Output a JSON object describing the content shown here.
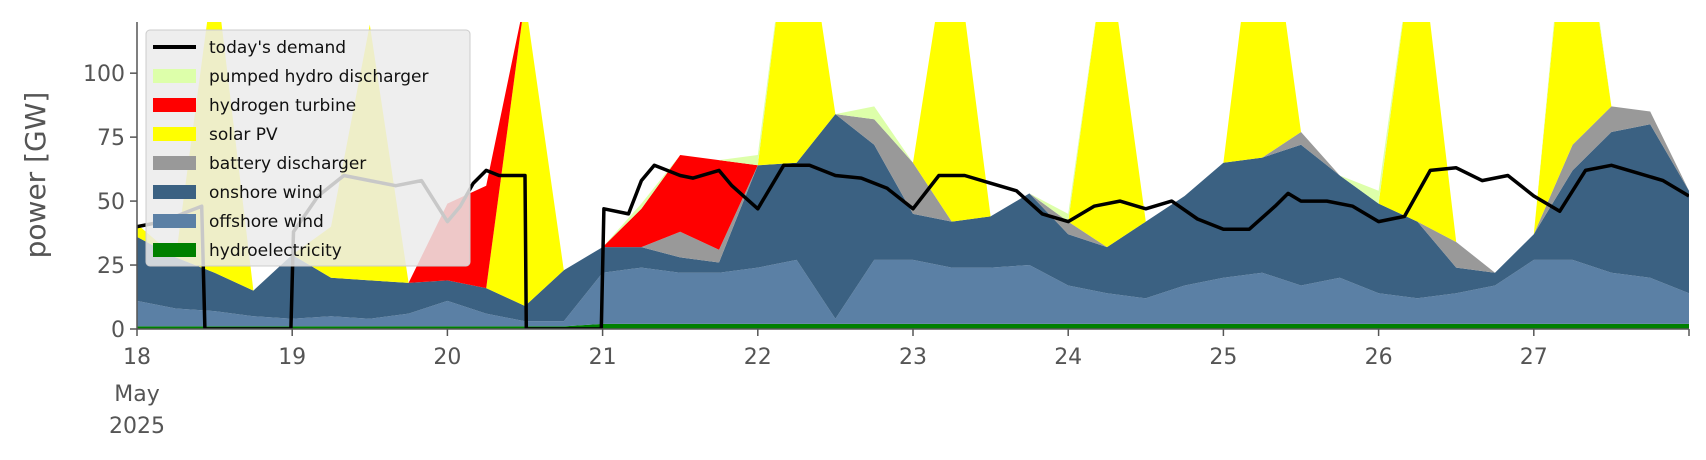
{
  "chart_data": {
    "type": "area",
    "ylabel": "power [GW]",
    "ylim": [
      0,
      120
    ],
    "xlim": [
      0,
      240
    ],
    "x_unit_note": "hours from 18 May 2025 00:00",
    "grid": false,
    "legend_position": "top-left",
    "x_ticks": [
      {
        "x": 0,
        "label": "18"
      },
      {
        "x": 24,
        "label": "19"
      },
      {
        "x": 48,
        "label": "20"
      },
      {
        "x": 72,
        "label": "21"
      },
      {
        "x": 96,
        "label": "22"
      },
      {
        "x": 120,
        "label": "23"
      },
      {
        "x": 144,
        "label": "24"
      },
      {
        "x": 168,
        "label": "25"
      },
      {
        "x": 192,
        "label": "26"
      },
      {
        "x": 216,
        "label": "27"
      }
    ],
    "x_sublabel_month": "May",
    "x_sublabel_year": "2025",
    "y_ticks": [
      0,
      25,
      50,
      75,
      100
    ],
    "x": [
      0,
      6,
      12,
      18,
      24,
      30,
      36,
      42,
      48,
      54,
      60,
      66,
      72,
      78,
      84,
      90,
      96,
      102,
      108,
      114,
      120,
      126,
      132,
      138,
      144,
      150,
      156,
      162,
      168,
      174,
      180,
      186,
      192,
      198,
      204,
      210,
      216,
      222,
      228,
      234,
      240
    ],
    "series": [
      {
        "name": "hydroelectricity",
        "color": "#008000",
        "values": [
          1,
          1,
          1,
          1,
          1,
          1,
          1,
          1,
          1,
          1,
          1,
          1,
          2,
          2,
          2,
          2,
          2,
          2,
          2,
          2,
          2,
          2,
          2,
          2,
          2,
          2,
          2,
          2,
          2,
          2,
          2,
          2,
          2,
          2,
          2,
          2,
          2,
          2,
          2,
          2,
          2
        ]
      },
      {
        "name": "offshore wind",
        "color": "#5b80a5",
        "values": [
          10,
          7,
          6,
          4,
          3,
          4,
          3,
          5,
          10,
          5,
          2,
          2,
          20,
          22,
          20,
          20,
          22,
          25,
          2,
          25,
          25,
          22,
          22,
          23,
          15,
          12,
          10,
          15,
          18,
          20,
          15,
          18,
          12,
          10,
          12,
          15,
          25,
          25,
          20,
          18,
          12
        ]
      },
      {
        "name": "onshore wind",
        "color": "#3b6182",
        "values": [
          25,
          20,
          15,
          10,
          25,
          15,
          15,
          12,
          8,
          10,
          6,
          20,
          10,
          8,
          6,
          4,
          40,
          38,
          80,
          45,
          18,
          18,
          20,
          28,
          20,
          18,
          30,
          35,
          45,
          45,
          55,
          40,
          35,
          30,
          10,
          5,
          10,
          35,
          55,
          60,
          40
        ]
      },
      {
        "name": "battery discharger",
        "color": "#999999",
        "values": [
          0,
          0,
          0,
          0,
          0,
          0,
          0,
          0,
          0,
          0,
          0,
          0,
          0,
          0,
          10,
          5,
          0,
          0,
          0,
          10,
          20,
          0,
          0,
          0,
          5,
          0,
          0,
          0,
          0,
          0,
          5,
          0,
          0,
          0,
          10,
          0,
          0,
          10,
          10,
          5,
          0
        ]
      },
      {
        "name": "solar PV",
        "color": "#ffff00",
        "values": [
          5,
          0,
          120,
          0,
          0,
          20,
          100,
          0,
          0,
          0,
          120,
          0,
          0,
          0,
          0,
          0,
          0,
          120,
          0,
          0,
          0,
          120,
          0,
          0,
          0,
          120,
          0,
          0,
          0,
          120,
          0,
          0,
          0,
          120,
          0,
          0,
          0,
          120,
          0,
          0,
          0
        ]
      },
      {
        "name": "hydrogen turbine",
        "color": "#ff0000",
        "values": [
          0,
          0,
          0,
          0,
          0,
          0,
          0,
          0,
          30,
          40,
          0,
          0,
          0,
          15,
          30,
          35,
          0,
          0,
          0,
          0,
          0,
          0,
          0,
          0,
          0,
          0,
          0,
          0,
          0,
          0,
          0,
          0,
          0,
          0,
          0,
          0,
          0,
          0,
          0,
          0,
          0
        ]
      },
      {
        "name": "pumped hydro discharger",
        "color": "#ddffaa",
        "values": [
          0,
          0,
          0,
          0,
          0,
          0,
          0,
          0,
          0,
          0,
          0,
          0,
          0,
          2,
          0,
          0,
          4,
          0,
          0,
          5,
          0,
          0,
          0,
          0,
          3,
          0,
          0,
          0,
          0,
          0,
          0,
          0,
          5,
          0,
          0,
          0,
          0,
          5,
          0,
          0,
          0
        ]
      }
    ],
    "demand": {
      "name": "today's demand",
      "color": "#000000",
      "x": [
        0,
        4,
        8,
        10,
        10.5,
        14,
        20,
        23.8,
        24.2,
        28,
        32,
        36,
        40,
        44,
        48,
        50,
        52,
        54,
        56,
        58,
        60,
        60.2,
        71.8,
        72.2,
        76,
        78,
        80,
        84,
        86,
        90,
        92,
        96,
        100,
        104,
        108,
        112,
        116,
        120,
        124,
        128,
        132,
        136,
        140,
        144,
        148,
        152,
        156,
        160,
        164,
        168,
        172,
        176,
        178,
        180,
        184,
        188,
        192,
        196,
        200,
        204,
        208,
        212,
        216,
        220,
        224,
        228,
        232,
        236,
        240
      ],
      "values": [
        40,
        42,
        46,
        48,
        0,
        0,
        0,
        0,
        38,
        52,
        60,
        58,
        56,
        58,
        42,
        48,
        57,
        62,
        60,
        60,
        60,
        0,
        0,
        47,
        45,
        58,
        64,
        60,
        59,
        62,
        56,
        47,
        64,
        64,
        60,
        59,
        55,
        47,
        60,
        60,
        57,
        54,
        45,
        42,
        48,
        50,
        47,
        50,
        43,
        39,
        39,
        48,
        53,
        50,
        50,
        48,
        42,
        44,
        62,
        63,
        58,
        60,
        52,
        46,
        62,
        64,
        61,
        58,
        52
      ]
    }
  }
}
